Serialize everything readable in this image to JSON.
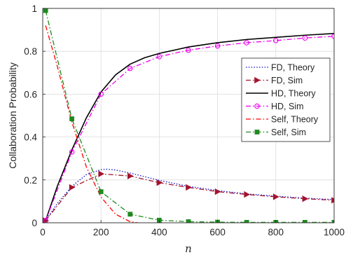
{
  "chart_data": {
    "type": "line",
    "xlabel": "n",
    "ylabel": "Collaboration Probability",
    "xlim": [
      0,
      1000
    ],
    "ylim": [
      0,
      1
    ],
    "xticks": [
      0,
      200,
      400,
      600,
      800,
      1000
    ],
    "yticks": [
      0,
      0.2,
      0.4,
      0.6,
      0.8,
      1
    ],
    "xtick_labels": [
      "0",
      "200",
      "400",
      "600",
      "800",
      "1000"
    ],
    "ytick_labels": [
      "0",
      "0.2",
      "0.4",
      "0.6",
      "0.8",
      "1"
    ],
    "grid": true,
    "legend_position": "right",
    "series": [
      {
        "name": "FD, Theory",
        "color": "#1f1fd0",
        "dash": "dotted",
        "marker": "none",
        "x": [
          10,
          50,
          100,
          150,
          200,
          220,
          250,
          300,
          350,
          400,
          500,
          600,
          700,
          800,
          900,
          1000
        ],
        "y": [
          0.01,
          0.09,
          0.17,
          0.225,
          0.248,
          0.25,
          0.246,
          0.232,
          0.215,
          0.198,
          0.17,
          0.15,
          0.135,
          0.124,
          0.115,
          0.108
        ]
      },
      {
        "name": "FD, Sim",
        "color": "#a2142f",
        "dash": "dashdot",
        "marker": "triangle-right",
        "x": [
          10,
          100,
          200,
          300,
          400,
          500,
          600,
          700,
          800,
          900,
          1000
        ],
        "y": [
          0.01,
          0.165,
          0.228,
          0.218,
          0.187,
          0.165,
          0.145,
          0.132,
          0.121,
          0.112,
          0.105
        ]
      },
      {
        "name": "HD, Theory",
        "color": "#000000",
        "dash": "solid",
        "marker": "none",
        "x": [
          10,
          50,
          100,
          150,
          200,
          250,
          300,
          350,
          400,
          500,
          600,
          700,
          800,
          900,
          1000
        ],
        "y": [
          0.01,
          0.17,
          0.34,
          0.49,
          0.61,
          0.69,
          0.74,
          0.77,
          0.79,
          0.82,
          0.84,
          0.855,
          0.865,
          0.875,
          0.883
        ]
      },
      {
        "name": "HD, Sim",
        "color": "#ee00ee",
        "dash": "dashdot",
        "marker": "circle",
        "x": [
          10,
          100,
          200,
          300,
          400,
          500,
          600,
          700,
          800,
          900,
          1000
        ],
        "y": [
          0.01,
          0.33,
          0.6,
          0.72,
          0.775,
          0.805,
          0.825,
          0.84,
          0.85,
          0.862,
          0.87
        ]
      },
      {
        "name": "Self, Theory",
        "color": "#ff0000",
        "dash": "dashdot",
        "marker": "none",
        "x": [
          10,
          50,
          100,
          150,
          200,
          250,
          300,
          350,
          400,
          500,
          600,
          700,
          800,
          900,
          1000
        ],
        "y": [
          0.92,
          0.73,
          0.47,
          0.26,
          0.12,
          0.04,
          0.005,
          -0.005,
          -0.01,
          -0.008,
          -0.005,
          -0.003,
          -0.002,
          -0.001,
          0.0
        ]
      },
      {
        "name": "Self, Sim",
        "color": "#1e8a1e",
        "dash": "dashdot",
        "marker": "square",
        "x": [
          10,
          100,
          200,
          300,
          400,
          500,
          600,
          700,
          800,
          900,
          1000
        ],
        "y": [
          0.99,
          0.485,
          0.145,
          0.04,
          0.012,
          0.005,
          0.003,
          0.002,
          0.002,
          0.002,
          0.002
        ]
      }
    ]
  }
}
